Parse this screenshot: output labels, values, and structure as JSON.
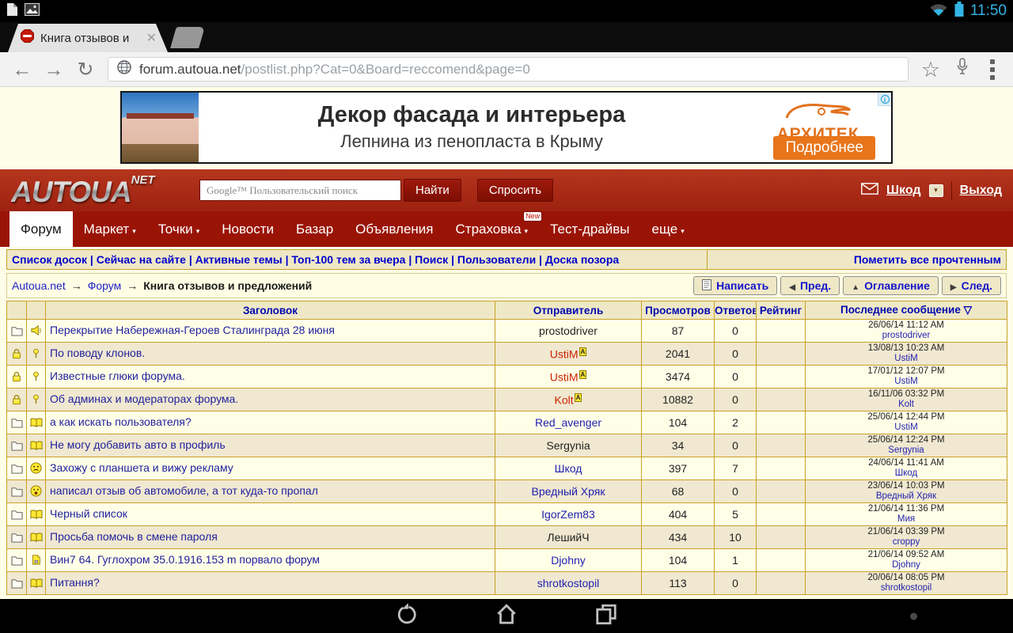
{
  "status_bar": {
    "time": "11:50"
  },
  "browser": {
    "tab_title": "Книга отзывов и",
    "url_domain": "forum.autoua.net",
    "url_path": "/postlist.php?Cat=0&Board=reccomend&page=0"
  },
  "ad": {
    "title": "Декор фасада и интерьера",
    "subtitle": "Лепнина из пенопласта в Крыму",
    "brand": "АРХИТЕК",
    "cta": "Подробнее",
    "info": "i"
  },
  "header": {
    "logo": "AUTOUA",
    "logo_tld": "NET",
    "search_placeholder": "Google™ Пользовательский поиск",
    "find_button": "Найти",
    "ask_button": "Спросить",
    "username": "Шкод",
    "logout": "Выход"
  },
  "nav": {
    "items": [
      {
        "label": "Форум",
        "active": true
      },
      {
        "label": "Маркет",
        "dropdown": true
      },
      {
        "label": "Точки",
        "dropdown": true
      },
      {
        "label": "Новости"
      },
      {
        "label": "Базар"
      },
      {
        "label": "Объявления"
      },
      {
        "label": "Страховка",
        "dropdown": true,
        "badge": "New"
      },
      {
        "label": "Тест-драйвы"
      },
      {
        "label": "еще",
        "dropdown": true
      }
    ]
  },
  "subnav": {
    "links": [
      "Список досок",
      "Сейчас на сайте",
      "Активные темы",
      "Топ-100 тем за вчера",
      "Поиск",
      "Пользователи",
      "Доска позора"
    ],
    "right_link": "Пометить все прочтенным"
  },
  "breadcrumb": {
    "links": [
      "Autoua.net",
      "Форум"
    ],
    "separator": "→",
    "current": "Книга отзывов и предложений",
    "buttons": [
      {
        "icon": "compose",
        "label": "Написать"
      },
      {
        "icon": "prev",
        "label": "Пред."
      },
      {
        "icon": "toc",
        "label": "Оглавление"
      },
      {
        "icon": "next",
        "label": "След."
      }
    ]
  },
  "table": {
    "headers": {
      "title": "Заголовок",
      "sender": "Отправитель",
      "views": "Просмотров",
      "replies": "Ответов",
      "rating": "Рейтинг",
      "last": "Последнее сообщение",
      "sort_indicator": "▽"
    },
    "rows": [
      {
        "icon1": "folder",
        "icon2": "speaker",
        "title": "Перекрытие Набережная-Героев Сталинграда 28 июня",
        "sender": "prostodriver",
        "sender_style": "plain",
        "views": "87",
        "replies": "0",
        "rating": "",
        "last_date": "26/06/14 11:12 AM",
        "last_user": "prostodriver"
      },
      {
        "icon1": "lock",
        "icon2": "pin",
        "title": "По поводу клонов.",
        "sender": "UstiM",
        "sender_style": "admin",
        "views": "2041",
        "replies": "0",
        "rating": "",
        "last_date": "13/08/13 10:23 AM",
        "last_user": "UstiM"
      },
      {
        "icon1": "lock",
        "icon2": "pin",
        "title": "Известные глюки форума.",
        "sender": "UstiM",
        "sender_style": "admin",
        "views": "3474",
        "replies": "0",
        "rating": "",
        "last_date": "17/01/12 12:07 PM",
        "last_user": "UstiM"
      },
      {
        "icon1": "lock",
        "icon2": "pin",
        "title": "Об админах и модераторах форума.",
        "sender": "Kolt",
        "sender_style": "admin",
        "views": "10882",
        "replies": "0",
        "rating": "",
        "last_date": "16/11/06 03:32 PM",
        "last_user": "Kolt"
      },
      {
        "icon1": "folder",
        "icon2": "book",
        "title": "а как искать пользователя?",
        "sender": "Red_avenger",
        "sender_style": "link",
        "views": "104",
        "replies": "2",
        "rating": "",
        "last_date": "25/06/14 12:44 PM",
        "last_user": "UstiM"
      },
      {
        "icon1": "folder",
        "icon2": "book",
        "title": "Не могу добавить авто в профиль",
        "sender": "Sergynia",
        "sender_style": "plain",
        "views": "34",
        "replies": "0",
        "rating": "",
        "last_date": "25/06/14 12:24 PM",
        "last_user": "Sergynia"
      },
      {
        "icon1": "folder",
        "icon2": "sad",
        "title": "Захожу с планшета и вижу рекламу",
        "sender": "Шкод",
        "sender_style": "link",
        "views": "397",
        "replies": "7",
        "rating": "",
        "last_date": "24/06/14 11:41 AM",
        "last_user": "Шкод"
      },
      {
        "icon1": "folder",
        "icon2": "shock",
        "title": "написал отзыв об автомобиле, а тот куда-то пропал",
        "sender": "Вредный Хряк",
        "sender_style": "link",
        "views": "68",
        "replies": "0",
        "rating": "",
        "last_date": "23/06/14 10:03 PM",
        "last_user": "Вредный Хряк"
      },
      {
        "icon1": "folder",
        "icon2": "book",
        "title": "Черный список",
        "sender": "IgorZem83",
        "sender_style": "link",
        "views": "404",
        "replies": "5",
        "rating": "",
        "last_date": "21/06/14 11:36 PM",
        "last_user": "Мия"
      },
      {
        "icon1": "folder",
        "icon2": "book",
        "title": "Просьба помочь в смене пароля",
        "sender": "ЛешийЧ",
        "sender_style": "plain",
        "views": "434",
        "replies": "10",
        "rating": "",
        "last_date": "21/06/14 03:39 PM",
        "last_user": "croppy"
      },
      {
        "icon1": "folder",
        "icon2": "note",
        "title": "Вин7 64. Гуглохром 35.0.1916.153 m порвало форум",
        "sender": "Djohny",
        "sender_style": "link",
        "views": "104",
        "replies": "1",
        "rating": "",
        "last_date": "21/06/14 09:52 AM",
        "last_user": "Djohny"
      },
      {
        "icon1": "folder",
        "icon2": "book",
        "title": "Питання?",
        "sender": "shrotkostopil",
        "sender_style": "link",
        "views": "113",
        "replies": "0",
        "rating": "",
        "last_date": "20/06/14 08:05 PM",
        "last_user": "shrotkostopil"
      }
    ]
  },
  "colors": {
    "page_bg": "#FEFEE8",
    "header_red": "#AC2B18",
    "nav_red": "#9A1406",
    "accent_blue": "#0000CC",
    "title_navy": "#1F1F9E",
    "table_border": "#C9A227",
    "row_light": "#FFFFE8",
    "row_dark": "#F0E8D0",
    "panel_bg": "#EFE8C6",
    "sender_red": "#CC2200",
    "holo_blue": "#33B5E5",
    "cta_orange": "#E8751A"
  }
}
